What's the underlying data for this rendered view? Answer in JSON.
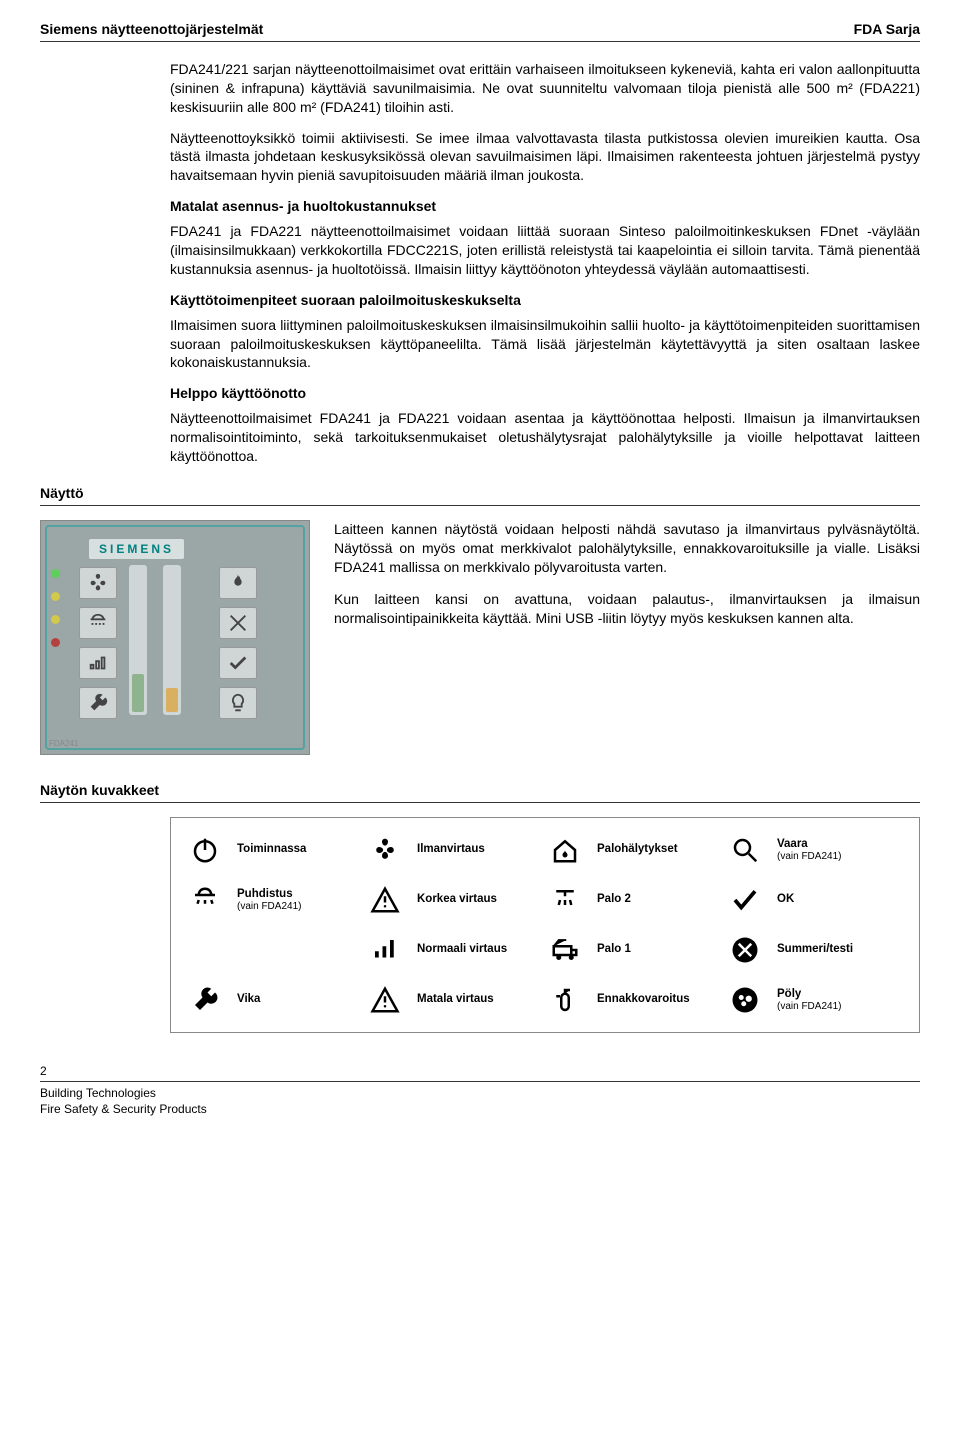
{
  "header": {
    "left": "Siemens näytteenottojärjestelmät",
    "right": "FDA Sarja"
  },
  "body": {
    "p1": "FDA241/221 sarjan näytteenottoilmaisimet ovat erittäin varhaiseen ilmoitukseen kykeneviä, kahta eri valon aallonpituutta (sininen & infrapuna) käyttäviä savunilmaisimia. Ne ovat suunniteltu valvomaan tiloja pienistä alle 500 m² (FDA221) keskisuuriin alle 800 m² (FDA241) tiloihin asti.",
    "p2": "Näytteenottoyksikkö toimii aktiivisesti. Se imee ilmaa valvottavasta tilasta putkistossa olevien imureikien kautta. Osa tästä ilmasta johdetaan keskusyksikössä olevan savuilmaisimen läpi. Ilmaisimen rakenteesta johtuen järjestelmä pystyy havaitsemaan hyvin pieniä savupitoisuuden määriä ilman joukosta.",
    "h1": "Matalat asennus- ja huoltokustannukset",
    "p3": "FDA241 ja FDA221 näytteenottoilmaisimet voidaan liittää suoraan Sinteso paloilmoitinkeskuksen FDnet -väylään (ilmaisinsilmukkaan) verkkokortilla FDCC221S, joten erillistä releistystä tai kaapelointia ei silloin tarvita. Tämä pienentää kustannuksia asennus- ja huoltotöissä. Ilmaisin liittyy käyttöönoton yhteydessä väylään automaattisesti.",
    "h2": "Käyttötoimenpiteet suoraan paloilmoituskeskukselta",
    "p4": "Ilmaisimen suora liittyminen paloilmoituskeskuksen ilmaisinsilmukoihin sallii huolto- ja käyttötoimenpiteiden suorittamisen suoraan paloilmoituskeskuksen käyttöpaneelilta. Tämä lisää järjestelmän käytettävyyttä ja siten osaltaan laskee kokonaiskustannuksia.",
    "h3": "Helppo käyttöönotto",
    "p5": "Näytteenottoilmaisimet FDA241 ja FDA221 voidaan asentaa ja käyttöönottaa helposti. Ilmaisun ja ilmanvirtauksen normalisointitoiminto, sekä tarkoituksenmukaiset oletushälytysrajat palohälytyksille ja vioille helpottavat laitteen käyttöönottoa."
  },
  "display": {
    "heading": "Näyttö",
    "p1": "Laitteen kannen näytöstä voidaan helposti nähdä savutaso ja ilmanvirtaus pylväsnäytöltä. Näytössä on myös omat merkkivalot palohälytyksille, ennakkovaroituksille ja vialle. Lisäksi FDA241 mallissa on merkkivalo pölyvaroitusta varten.",
    "p2": "Kun laitteen kansi on avattuna, voidaan palautus-, ilmanvirtauksen ja ilmaisun normalisointipainikkeita käyttää. Mini USB -liitin löytyy myös keskuksen kannen alta."
  },
  "panel": {
    "brand": "SIEMENS",
    "label": "FDA241",
    "led_colors": [
      "#5bd05b",
      "#d0c94a",
      "#d0c94a",
      "#b54040"
    ],
    "bar1": {
      "height": 38,
      "color": "#8fb38f"
    },
    "bar2": {
      "height": 24,
      "color": "#d9b060"
    }
  },
  "icons_heading": "Näytön kuvakkeet",
  "legend": [
    {
      "label": "Toiminnassa",
      "sub": ""
    },
    {
      "label": "Ilmanvirtaus",
      "sub": ""
    },
    {
      "label": "Palohälytykset",
      "sub": ""
    },
    {
      "label": "Vaara",
      "sub": "(vain FDA241)"
    },
    {
      "label": "Puhdistus",
      "sub": "(vain FDA241)"
    },
    {
      "label": "Korkea virtaus",
      "sub": ""
    },
    {
      "label": "Palo 2",
      "sub": ""
    },
    {
      "label": "OK",
      "sub": ""
    },
    {
      "label": "",
      "sub": ""
    },
    {
      "label": "Normaali virtaus",
      "sub": ""
    },
    {
      "label": "Palo 1",
      "sub": ""
    },
    {
      "label": "Summeri/testi",
      "sub": ""
    },
    {
      "label": "Vika",
      "sub": ""
    },
    {
      "label": "Matala virtaus",
      "sub": ""
    },
    {
      "label": "Ennakkovaroitus",
      "sub": ""
    },
    {
      "label": "Pöly",
      "sub": "(vain FDA241)"
    }
  ],
  "footer": {
    "page": "2",
    "line1": "Building Technologies",
    "line2": "Fire Safety & Security Products"
  }
}
